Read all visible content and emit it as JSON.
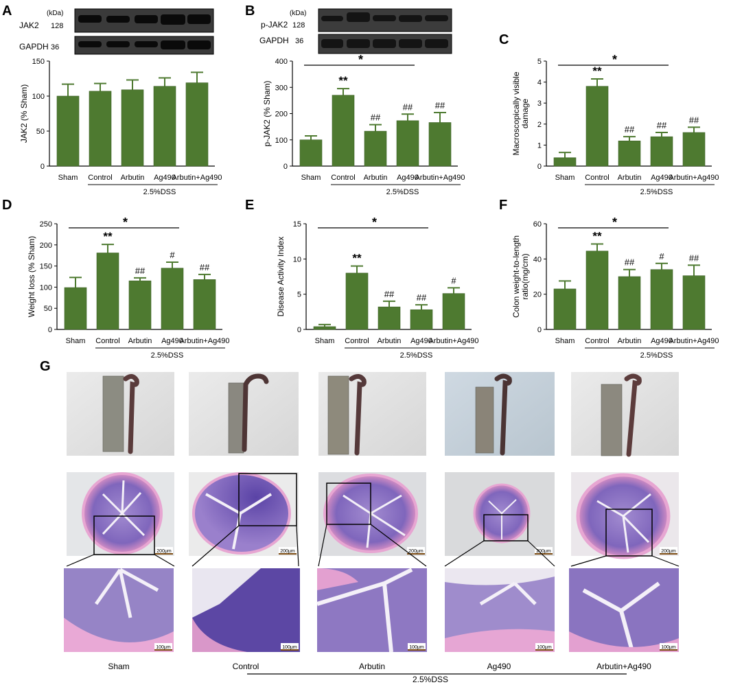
{
  "panel_labels": [
    "A",
    "B",
    "C",
    "D",
    "E",
    "F",
    "G"
  ],
  "colors": {
    "bar": "#4e7a30",
    "bar_edge": "#3d6126",
    "err": "#4e7a30",
    "blot_bg": "#2b2b2b",
    "band": "#0d0d0d"
  },
  "blots": {
    "A": {
      "unit": "(kDa)",
      "rows": [
        {
          "label": "JAK2",
          "kda": "128"
        },
        {
          "label": "GAPDH",
          "kda": "36"
        }
      ]
    },
    "B": {
      "unit": "(kDa)",
      "rows": [
        {
          "label": "p-JAK2",
          "kda": "128"
        },
        {
          "label": "GAPDH",
          "kda": "36"
        }
      ]
    }
  },
  "chart_data": [
    {
      "panel": "A",
      "type": "bar",
      "categories": [
        "Sham",
        "Control",
        "Arbutin",
        "Ag490",
        "Arbutin+Ag490"
      ],
      "values": [
        100,
        107,
        109,
        114,
        119
      ],
      "errors": [
        17,
        11,
        14,
        12,
        15
      ],
      "ylabel": "JAK2 (% Sham)",
      "ylim": [
        0,
        150
      ],
      "yticks": [
        0,
        50,
        100,
        150
      ],
      "group_label": "2.5%DSS",
      "annotations": [
        "",
        "",
        "",
        "",
        ""
      ],
      "significance": null
    },
    {
      "panel": "B",
      "type": "bar",
      "categories": [
        "Sham",
        "Control",
        "Arbutin",
        "Ag490",
        "Arbutin+Ag490"
      ],
      "values": [
        100,
        270,
        133,
        173,
        166
      ],
      "errors": [
        15,
        25,
        25,
        25,
        38
      ],
      "ylabel": "p-JAK2 (% Sham)",
      "ylim": [
        0,
        400
      ],
      "yticks": [
        0,
        100,
        200,
        300,
        400
      ],
      "group_label": "2.5%DSS",
      "annotations": [
        "",
        "**",
        "##",
        "##",
        "##"
      ],
      "significance": "*"
    },
    {
      "panel": "C",
      "type": "bar",
      "categories": [
        "Sham",
        "Control",
        "Arbutin",
        "Ag490",
        "Arbutin+Ag490"
      ],
      "values": [
        0.4,
        3.8,
        1.2,
        1.4,
        1.6
      ],
      "errors": [
        0.25,
        0.35,
        0.2,
        0.2,
        0.25
      ],
      "ylabel": "Macroscopically visible damage",
      "ylim": [
        0,
        5
      ],
      "yticks": [
        0,
        1,
        2,
        3,
        4,
        5
      ],
      "group_label": "2.5%DSS",
      "annotations": [
        "",
        "**",
        "##",
        "##",
        "##"
      ],
      "significance": "*"
    },
    {
      "panel": "D",
      "type": "bar",
      "categories": [
        "Sham",
        "Control",
        "Arbutin",
        "Ag490",
        "Arbutin+Ag490"
      ],
      "values": [
        99,
        181,
        115,
        145,
        118
      ],
      "errors": [
        24,
        20,
        7,
        14,
        12
      ],
      "ylabel": "Weight loss (% Sham)",
      "ylim": [
        0,
        250
      ],
      "yticks": [
        0,
        50,
        100,
        150,
        200,
        250
      ],
      "group_label": "2.5%DSS",
      "annotations": [
        "",
        "**",
        "##",
        "#",
        "##"
      ],
      "significance": "*"
    },
    {
      "panel": "E",
      "type": "bar",
      "categories": [
        "Sham",
        "Control",
        "Arbutin",
        "Ag490",
        "Arbutin+Ag490"
      ],
      "values": [
        0.4,
        8.0,
        3.2,
        2.8,
        5.1
      ],
      "errors": [
        0.3,
        1.0,
        0.8,
        0.7,
        0.8
      ],
      "ylabel": "Disease Activity Index",
      "ylim": [
        0,
        15
      ],
      "yticks": [
        0,
        5,
        10,
        15
      ],
      "group_label": "2.5%DSS",
      "annotations": [
        "",
        "**",
        "##",
        "##",
        "#"
      ],
      "significance": "*"
    },
    {
      "panel": "F",
      "type": "bar",
      "categories": [
        "Sham",
        "Control",
        "Arbutin",
        "Ag490",
        "Arbutin+Ag490"
      ],
      "values": [
        23,
        44.5,
        30,
        34,
        30.5
      ],
      "errors": [
        4.5,
        4.0,
        4.0,
        3.5,
        6.0
      ],
      "ylabel": "Colon weight-to-length ratio(mg/cm)",
      "ylim": [
        0,
        60
      ],
      "yticks": [
        0,
        20,
        40,
        60
      ],
      "group_label": "2.5%DSS",
      "annotations": [
        "",
        "**",
        "##",
        "#",
        "##"
      ],
      "significance": "*"
    }
  ],
  "panel_g": {
    "groups": [
      "Sham",
      "Control",
      "Arbutin",
      "Ag490",
      "Arbutin+Ag490"
    ],
    "group_label": "2.5%DSS",
    "scale_bars": {
      "mid": "200μm",
      "low": "100μm"
    }
  }
}
